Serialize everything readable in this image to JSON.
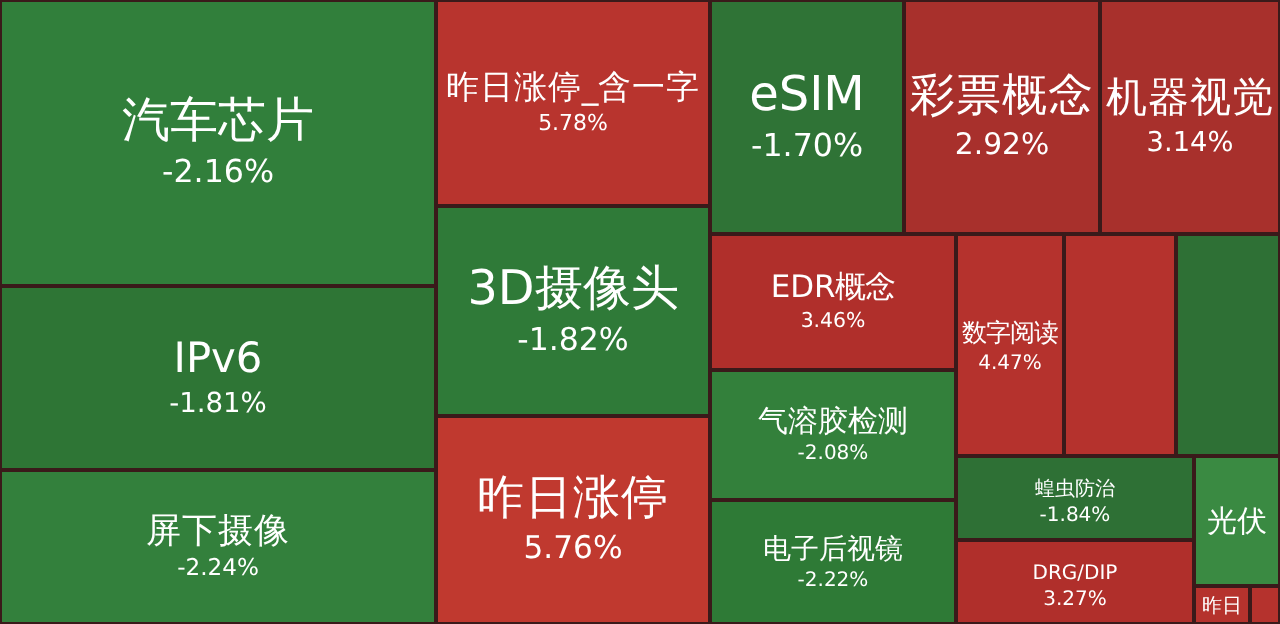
{
  "chart_data": {
    "type": "other",
    "categories": [
      "汽车芯片",
      "IPv6",
      "屏下摄像",
      "昨日涨停_含一字",
      "3D摄像头",
      "昨日涨停",
      "eSIM",
      "彩票概念",
      "机器视觉",
      "EDR概念",
      "气溶胶检测",
      "电子后视镜",
      "数字阅读",
      null,
      null,
      "蝗虫防治",
      "DRG/DIP",
      "光伏",
      "昨日",
      null
    ],
    "values": [
      -2.16,
      -1.81,
      -2.24,
      5.78,
      -1.82,
      5.76,
      -1.7,
      2.92,
      3.14,
      3.46,
      -2.08,
      -2.22,
      4.47,
      null,
      null,
      -1.84,
      3.27,
      null,
      null,
      null
    ],
    "value_labels": [
      "-2.16%",
      "-1.81%",
      "-2.24%",
      "5.78%",
      "-1.82%",
      "5.76%",
      "-1.70%",
      "2.92%",
      "3.14%",
      "3.46%",
      "-2.08%",
      "-2.22%",
      "4.47%",
      null,
      null,
      "-1.84%",
      "3.27%",
      null,
      null,
      null
    ],
    "colors": [
      "#317f3b",
      "#2e7535",
      "#33803c",
      "#b8342e",
      "#2f7a38",
      "#c0392f",
      "#2f7336",
      "#a8302c",
      "#a8302c",
      "#b02f2b",
      "#33803b",
      "#2e7a36",
      "#b5322d",
      "#b5322d",
      "#2e7035",
      "#2e7035",
      "#b02f2b",
      "#3a8a42",
      "#b5322d",
      "#b5322d"
    ]
  }
}
